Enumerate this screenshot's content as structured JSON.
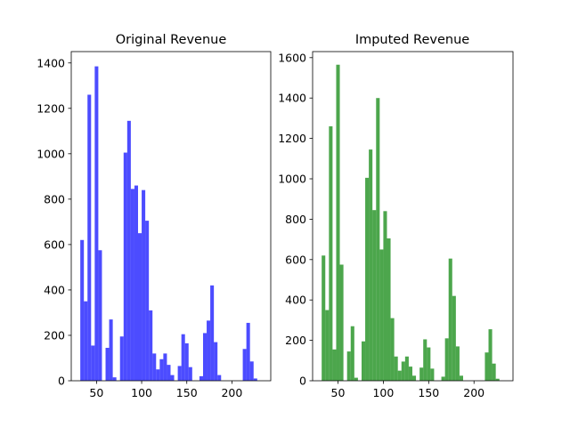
{
  "chart_data": [
    {
      "type": "bar",
      "title": "Original Revenue",
      "color": "#0000ff",
      "opacity": 0.7,
      "xlim": [
        22,
        243
      ],
      "ylim": [
        0,
        1450
      ],
      "xticks": [
        50,
        100,
        150,
        200
      ],
      "yticks": [
        0,
        200,
        400,
        600,
        800,
        1000,
        1200,
        1400
      ],
      "bin_width": 4,
      "bins": [
        {
          "x": 32,
          "value": 620
        },
        {
          "x": 36,
          "value": 350
        },
        {
          "x": 40,
          "value": 1260
        },
        {
          "x": 44,
          "value": 155
        },
        {
          "x": 48,
          "value": 1385
        },
        {
          "x": 52,
          "value": 575
        },
        {
          "x": 60,
          "value": 145
        },
        {
          "x": 64,
          "value": 270
        },
        {
          "x": 68,
          "value": 15
        },
        {
          "x": 76,
          "value": 195
        },
        {
          "x": 80,
          "value": 1005
        },
        {
          "x": 84,
          "value": 1145
        },
        {
          "x": 88,
          "value": 845
        },
        {
          "x": 92,
          "value": 860
        },
        {
          "x": 96,
          "value": 650
        },
        {
          "x": 100,
          "value": 840
        },
        {
          "x": 104,
          "value": 705
        },
        {
          "x": 108,
          "value": 310
        },
        {
          "x": 112,
          "value": 120
        },
        {
          "x": 116,
          "value": 50
        },
        {
          "x": 120,
          "value": 95
        },
        {
          "x": 124,
          "value": 120
        },
        {
          "x": 128,
          "value": 70
        },
        {
          "x": 132,
          "value": 25
        },
        {
          "x": 140,
          "value": 65
        },
        {
          "x": 144,
          "value": 205
        },
        {
          "x": 148,
          "value": 165
        },
        {
          "x": 152,
          "value": 60
        },
        {
          "x": 164,
          "value": 20
        },
        {
          "x": 168,
          "value": 210
        },
        {
          "x": 172,
          "value": 265
        },
        {
          "x": 176,
          "value": 420
        },
        {
          "x": 180,
          "value": 170
        },
        {
          "x": 184,
          "value": 25
        },
        {
          "x": 212,
          "value": 140
        },
        {
          "x": 216,
          "value": 255
        },
        {
          "x": 220,
          "value": 85
        },
        {
          "x": 224,
          "value": 10
        }
      ]
    },
    {
      "type": "bar",
      "title": "Imputed Revenue",
      "color": "#008000",
      "opacity": 0.7,
      "xlim": [
        22,
        243
      ],
      "ylim": [
        0,
        1630
      ],
      "xticks": [
        50,
        100,
        150,
        200
      ],
      "yticks": [
        0,
        200,
        400,
        600,
        800,
        1000,
        1200,
        1400,
        1600
      ],
      "bin_width": 4,
      "bins": [
        {
          "x": 32,
          "value": 620
        },
        {
          "x": 36,
          "value": 350
        },
        {
          "x": 40,
          "value": 1260
        },
        {
          "x": 44,
          "value": 155
        },
        {
          "x": 48,
          "value": 1565
        },
        {
          "x": 52,
          "value": 575
        },
        {
          "x": 60,
          "value": 145
        },
        {
          "x": 64,
          "value": 270
        },
        {
          "x": 68,
          "value": 15
        },
        {
          "x": 76,
          "value": 195
        },
        {
          "x": 80,
          "value": 1005
        },
        {
          "x": 84,
          "value": 1145
        },
        {
          "x": 88,
          "value": 845
        },
        {
          "x": 92,
          "value": 1400
        },
        {
          "x": 96,
          "value": 650
        },
        {
          "x": 100,
          "value": 840
        },
        {
          "x": 104,
          "value": 705
        },
        {
          "x": 108,
          "value": 310
        },
        {
          "x": 112,
          "value": 120
        },
        {
          "x": 116,
          "value": 50
        },
        {
          "x": 120,
          "value": 95
        },
        {
          "x": 124,
          "value": 120
        },
        {
          "x": 128,
          "value": 70
        },
        {
          "x": 132,
          "value": 25
        },
        {
          "x": 140,
          "value": 65
        },
        {
          "x": 144,
          "value": 205
        },
        {
          "x": 148,
          "value": 165
        },
        {
          "x": 152,
          "value": 60
        },
        {
          "x": 164,
          "value": 20
        },
        {
          "x": 168,
          "value": 210
        },
        {
          "x": 172,
          "value": 605
        },
        {
          "x": 176,
          "value": 420
        },
        {
          "x": 180,
          "value": 170
        },
        {
          "x": 184,
          "value": 25
        },
        {
          "x": 212,
          "value": 140
        },
        {
          "x": 216,
          "value": 255
        },
        {
          "x": 220,
          "value": 85
        },
        {
          "x": 224,
          "value": 10
        }
      ]
    }
  ]
}
